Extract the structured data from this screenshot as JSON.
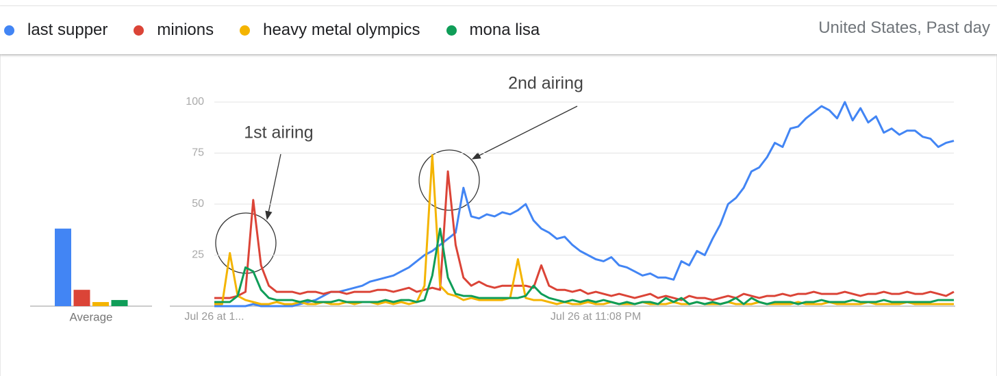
{
  "header": {
    "location": "United States, Past day"
  },
  "chart_data": [
    {
      "type": "bar",
      "xlabel": "Average",
      "values": [
        38,
        8,
        2,
        3
      ],
      "colors": [
        "#4285f4",
        "#db4437",
        "#f4b400",
        "#0f9d58"
      ],
      "ylim": [
        0,
        100
      ]
    },
    {
      "type": "line",
      "categories": [
        "Jul 26 at 1...",
        null,
        null,
        null,
        null,
        null,
        null,
        null,
        null,
        null,
        null,
        null,
        null,
        null,
        null,
        null,
        null,
        null,
        null,
        null,
        null,
        null,
        null,
        null,
        null,
        null,
        null,
        null,
        null,
        null,
        null,
        null,
        null,
        null,
        null,
        null,
        null,
        null,
        null,
        null,
        null,
        null,
        null,
        null,
        null,
        null,
        null,
        null,
        null,
        "Jul 26 at 11:08 PM",
        null,
        null,
        null,
        null,
        null,
        null,
        null,
        null,
        null,
        null,
        null,
        null,
        null,
        null,
        null,
        null,
        null,
        null,
        null,
        null,
        null,
        null,
        null,
        null,
        null,
        null,
        null,
        null,
        null,
        null,
        null,
        null,
        null,
        null,
        null,
        null,
        null,
        null,
        null,
        null,
        null,
        null,
        null,
        null,
        null,
        null
      ],
      "ylim": [
        0,
        100
      ],
      "yticks": [
        25,
        50,
        75,
        100
      ],
      "grid": true,
      "annotations": [
        "1st airing",
        "2nd airing"
      ],
      "series": [
        {
          "name": "last supper",
          "color": "#4285f4",
          "values": [
            0,
            0,
            0,
            0,
            0,
            1,
            0,
            0,
            0,
            0,
            0,
            1,
            2,
            3,
            5,
            7,
            7,
            8,
            9,
            10,
            12,
            13,
            14,
            15,
            17,
            19,
            22,
            25,
            27,
            30,
            33,
            36,
            58,
            44,
            43,
            45,
            44,
            46,
            45,
            47,
            50,
            42,
            38,
            36,
            33,
            34,
            30,
            27,
            25,
            23,
            22,
            24,
            20,
            19,
            17,
            15,
            16,
            14,
            14,
            13,
            22,
            20,
            27,
            25,
            33,
            40,
            50,
            53,
            58,
            66,
            68,
            73,
            80,
            78,
            87,
            88,
            92,
            95,
            98,
            96,
            92,
            100,
            91,
            97,
            90,
            93,
            85,
            87,
            84,
            86,
            86,
            83,
            82,
            78,
            80,
            81
          ]
        },
        {
          "name": "minions",
          "color": "#db4437",
          "values": [
            4,
            4,
            4,
            5,
            7,
            52,
            20,
            10,
            7,
            7,
            7,
            6,
            7,
            7,
            6,
            7,
            7,
            6,
            7,
            7,
            7,
            8,
            8,
            7,
            8,
            9,
            7,
            8,
            9,
            8,
            66,
            30,
            14,
            10,
            12,
            10,
            9,
            10,
            10,
            10,
            10,
            9,
            20,
            10,
            8,
            8,
            7,
            8,
            6,
            7,
            6,
            5,
            6,
            5,
            4,
            5,
            6,
            4,
            5,
            4,
            3,
            5,
            4,
            4,
            3,
            4,
            5,
            4,
            6,
            5,
            4,
            5,
            5,
            6,
            5,
            6,
            6,
            7,
            6,
            6,
            6,
            7,
            6,
            5,
            6,
            6,
            7,
            6,
            6,
            7,
            6,
            6,
            7,
            6,
            5,
            7
          ]
        },
        {
          "name": "heavy metal olympics",
          "color": "#f4b400",
          "values": [
            1,
            1,
            26,
            5,
            3,
            2,
            1,
            1,
            2,
            1,
            1,
            2,
            1,
            1,
            2,
            1,
            1,
            2,
            1,
            2,
            2,
            1,
            2,
            1,
            2,
            1,
            2,
            10,
            74,
            10,
            6,
            5,
            3,
            4,
            3,
            3,
            3,
            3,
            4,
            23,
            4,
            3,
            3,
            2,
            1,
            2,
            1,
            1,
            2,
            1,
            1,
            2,
            1,
            1,
            1,
            2,
            1,
            1,
            1,
            2,
            1,
            1,
            2,
            1,
            1,
            1,
            2,
            1,
            1,
            1,
            2,
            1,
            1,
            1,
            1,
            2,
            1,
            1,
            1,
            2,
            1,
            1,
            1,
            1,
            2,
            1,
            1,
            1,
            1,
            2,
            1,
            1,
            1,
            1,
            1,
            1
          ]
        },
        {
          "name": "mona lisa",
          "color": "#0f9d58",
          "values": [
            2,
            2,
            2,
            5,
            19,
            17,
            8,
            4,
            3,
            3,
            3,
            2,
            3,
            2,
            2,
            2,
            3,
            2,
            2,
            2,
            2,
            2,
            3,
            2,
            3,
            3,
            2,
            3,
            15,
            38,
            14,
            6,
            5,
            5,
            4,
            4,
            4,
            4,
            4,
            4,
            5,
            10,
            6,
            4,
            3,
            2,
            3,
            2,
            3,
            2,
            3,
            2,
            1,
            2,
            1,
            2,
            2,
            1,
            4,
            2,
            4,
            1,
            2,
            1,
            2,
            1,
            2,
            4,
            1,
            4,
            2,
            1,
            2,
            2,
            2,
            1,
            2,
            2,
            3,
            2,
            2,
            2,
            3,
            2,
            2,
            2,
            3,
            2,
            2,
            2,
            2,
            2,
            2,
            3,
            3,
            3
          ]
        }
      ]
    }
  ]
}
